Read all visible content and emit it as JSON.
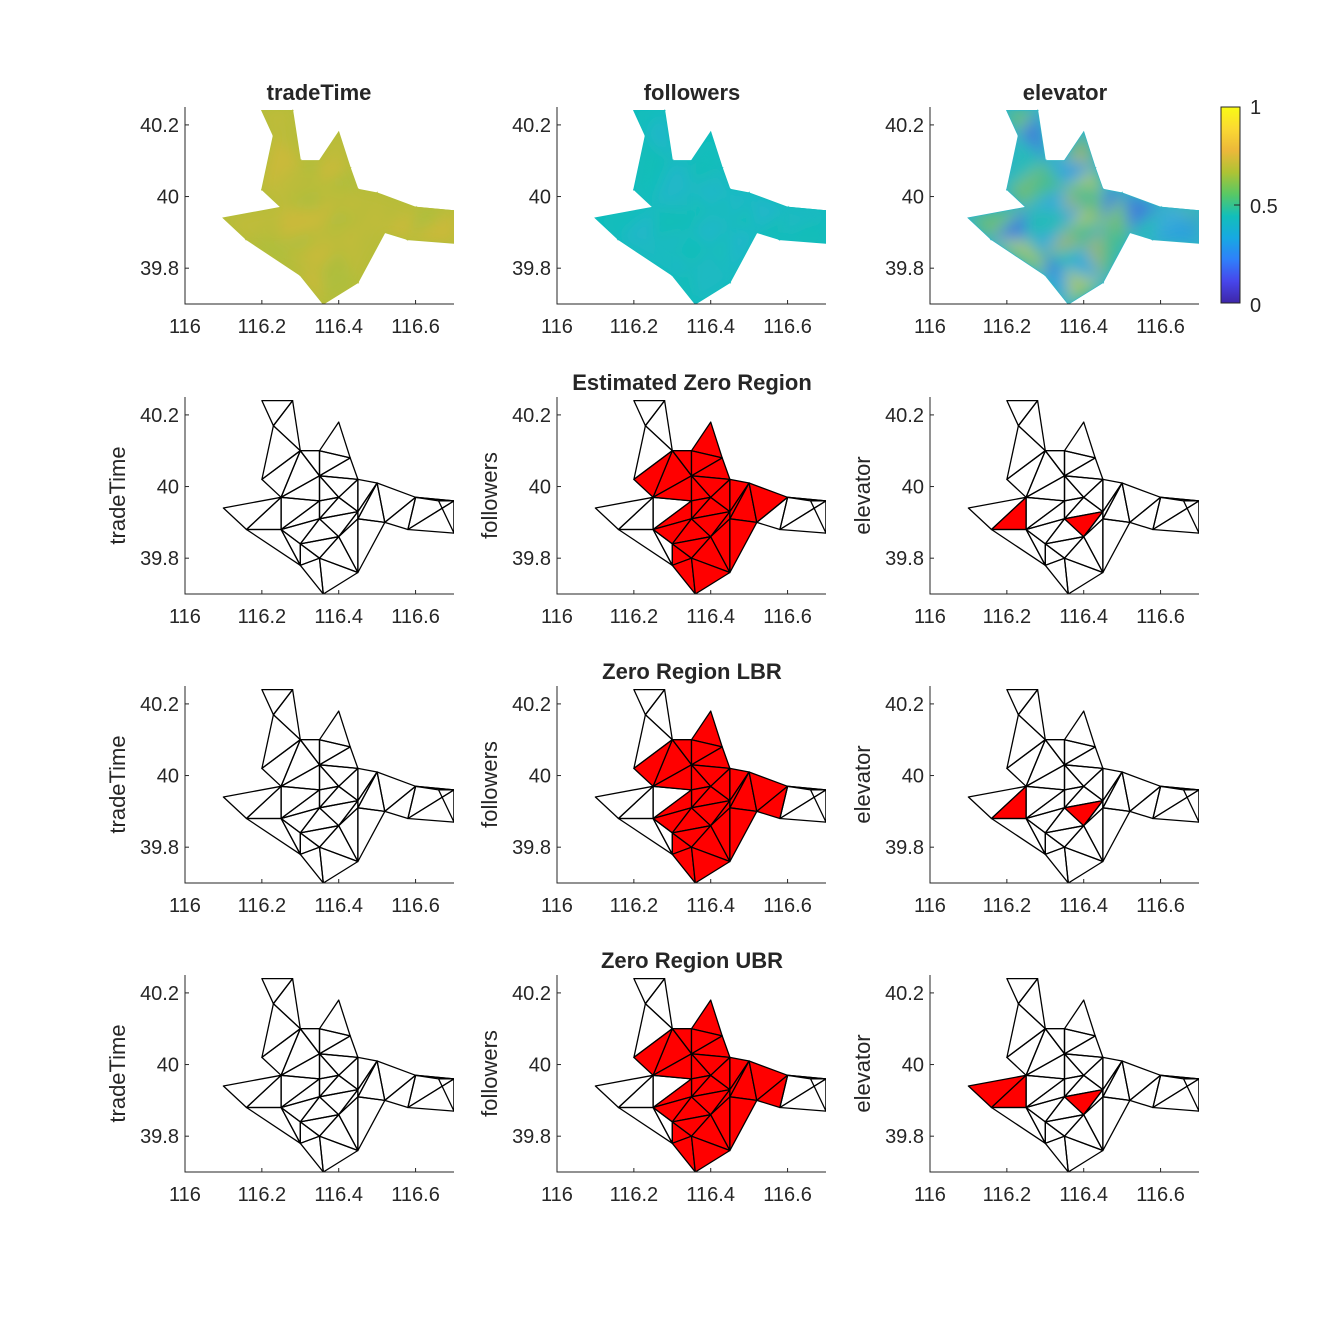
{
  "chart_data": {
    "type": "triangular-mesh-grid",
    "rows": 4,
    "cols": 3,
    "xlim": [
      116,
      116.7
    ],
    "ylim": [
      39.7,
      40.25
    ],
    "xticks": [
      "116",
      "116.2",
      "116.4",
      "116.6"
    ],
    "xtick_values": [
      116,
      116.2,
      116.4,
      116.6
    ],
    "yticks": [
      "39.8",
      "40",
      "40.2"
    ],
    "ytick_values": [
      39.8,
      40.0,
      40.2
    ],
    "column_titles": [
      "tradeTime",
      "followers",
      "elevator"
    ],
    "row_titles": [
      "",
      "Estimated Zero Region",
      "Zero Region LBR",
      "Zero Region UBR"
    ],
    "row_ylabels": [
      "tradeTime",
      "followers",
      "elevator"
    ],
    "colorbar": {
      "ticks": [
        "0",
        "0.5",
        "1"
      ],
      "tick_values": [
        0,
        0.5,
        1
      ],
      "colormap": "parula",
      "stops": [
        "#3e26a8",
        "#4746eb",
        "#2f80fa",
        "#17a9e2",
        "#12bfb9",
        "#59c864",
        "#aec334",
        "#ecb83a",
        "#fad932",
        "#f9fb15"
      ]
    },
    "heatmap_colors": {
      "tradeTime": {
        "base": "#b5bd39",
        "variants": [
          "#c9b93a",
          "#a9c040",
          "#dcb63a",
          "#bdbc38"
        ]
      },
      "followers": {
        "base": "#10bcbd",
        "variants": [
          "#24b8c7",
          "#12bfb4",
          "#31b2d4",
          "#0fbfba"
        ]
      },
      "elevator": {
        "base": "#30b5c5",
        "variants": [
          "#2b8ff0",
          "#5bc36a",
          "#e1b53a",
          "#3ea4e6",
          "#1fbdb0",
          "#4d58e8",
          "#9cc33f",
          "#f3d232"
        ]
      }
    },
    "fill_color": "#ff0000",
    "nodes": [
      [
        116.2,
        40.24
      ],
      [
        116.28,
        40.24
      ],
      [
        116.23,
        40.17
      ],
      [
        116.3,
        40.1
      ],
      [
        116.35,
        40.1
      ],
      [
        116.4,
        40.18
      ],
      [
        116.43,
        40.08
      ],
      [
        116.25,
        39.97
      ],
      [
        116.35,
        40.03
      ],
      [
        116.1,
        39.94
      ],
      [
        116.16,
        39.88
      ],
      [
        116.25,
        39.88
      ],
      [
        116.35,
        39.96
      ],
      [
        116.4,
        39.97
      ],
      [
        116.45,
        40.02
      ],
      [
        116.35,
        39.91
      ],
      [
        116.45,
        39.93
      ],
      [
        116.5,
        40.01
      ],
      [
        116.3,
        39.84
      ],
      [
        116.4,
        39.86
      ],
      [
        116.45,
        39.91
      ],
      [
        116.52,
        39.9
      ],
      [
        116.6,
        39.97
      ],
      [
        116.66,
        39.96
      ],
      [
        116.3,
        39.78
      ],
      [
        116.35,
        39.8
      ],
      [
        116.45,
        39.76
      ],
      [
        116.58,
        39.88
      ],
      [
        116.7,
        39.96
      ],
      [
        116.7,
        39.87
      ],
      [
        116.36,
        39.7
      ],
      [
        116.2,
        40.02
      ]
    ],
    "triangles": [
      [
        0,
        1,
        2
      ],
      [
        1,
        2,
        3
      ],
      [
        2,
        3,
        31
      ],
      [
        3,
        4,
        8
      ],
      [
        4,
        5,
        6
      ],
      [
        3,
        7,
        8
      ],
      [
        4,
        6,
        8
      ],
      [
        8,
        6,
        14
      ],
      [
        9,
        7,
        10
      ],
      [
        7,
        10,
        11
      ],
      [
        7,
        11,
        12
      ],
      [
        7,
        8,
        12
      ],
      [
        8,
        12,
        13
      ],
      [
        8,
        13,
        14
      ],
      [
        12,
        15,
        13
      ],
      [
        13,
        15,
        16
      ],
      [
        13,
        14,
        16
      ],
      [
        14,
        16,
        17
      ],
      [
        11,
        12,
        15
      ],
      [
        11,
        15,
        18
      ],
      [
        15,
        18,
        19
      ],
      [
        15,
        16,
        19
      ],
      [
        16,
        19,
        20
      ],
      [
        16,
        17,
        20
      ],
      [
        17,
        20,
        21
      ],
      [
        17,
        21,
        22
      ],
      [
        21,
        22,
        27
      ],
      [
        22,
        27,
        28
      ],
      [
        22,
        23,
        28
      ],
      [
        23,
        28,
        29
      ],
      [
        27,
        28,
        29
      ],
      [
        10,
        11,
        24
      ],
      [
        11,
        18,
        24
      ],
      [
        18,
        24,
        25
      ],
      [
        18,
        19,
        25
      ],
      [
        19,
        25,
        26
      ],
      [
        19,
        20,
        26
      ],
      [
        20,
        26,
        21
      ],
      [
        24,
        25,
        30
      ],
      [
        25,
        26,
        30
      ],
      [
        3,
        31,
        7
      ]
    ],
    "filled_triangles": [
      [
        [],
        [
          3,
          4,
          5,
          6,
          7,
          11,
          12,
          13,
          14,
          15,
          16,
          17,
          18,
          19,
          20,
          21,
          22,
          23,
          24,
          25,
          33,
          34,
          35,
          36,
          37,
          38,
          39,
          40
        ],
        [
          9,
          21
        ]
      ],
      [
        [],
        [
          3,
          4,
          5,
          6,
          7,
          11,
          12,
          13,
          14,
          15,
          16,
          17,
          18,
          19,
          20,
          21,
          22,
          23,
          24,
          25,
          26,
          33,
          34,
          35,
          36,
          37,
          38,
          39,
          40
        ],
        [
          9,
          21
        ]
      ],
      [
        [],
        [
          3,
          4,
          5,
          6,
          7,
          11,
          12,
          13,
          14,
          15,
          16,
          17,
          18,
          19,
          20,
          21,
          22,
          23,
          24,
          25,
          26,
          33,
          34,
          35,
          36,
          37,
          38,
          39,
          40
        ],
        [
          8,
          9,
          21
        ]
      ]
    ]
  }
}
